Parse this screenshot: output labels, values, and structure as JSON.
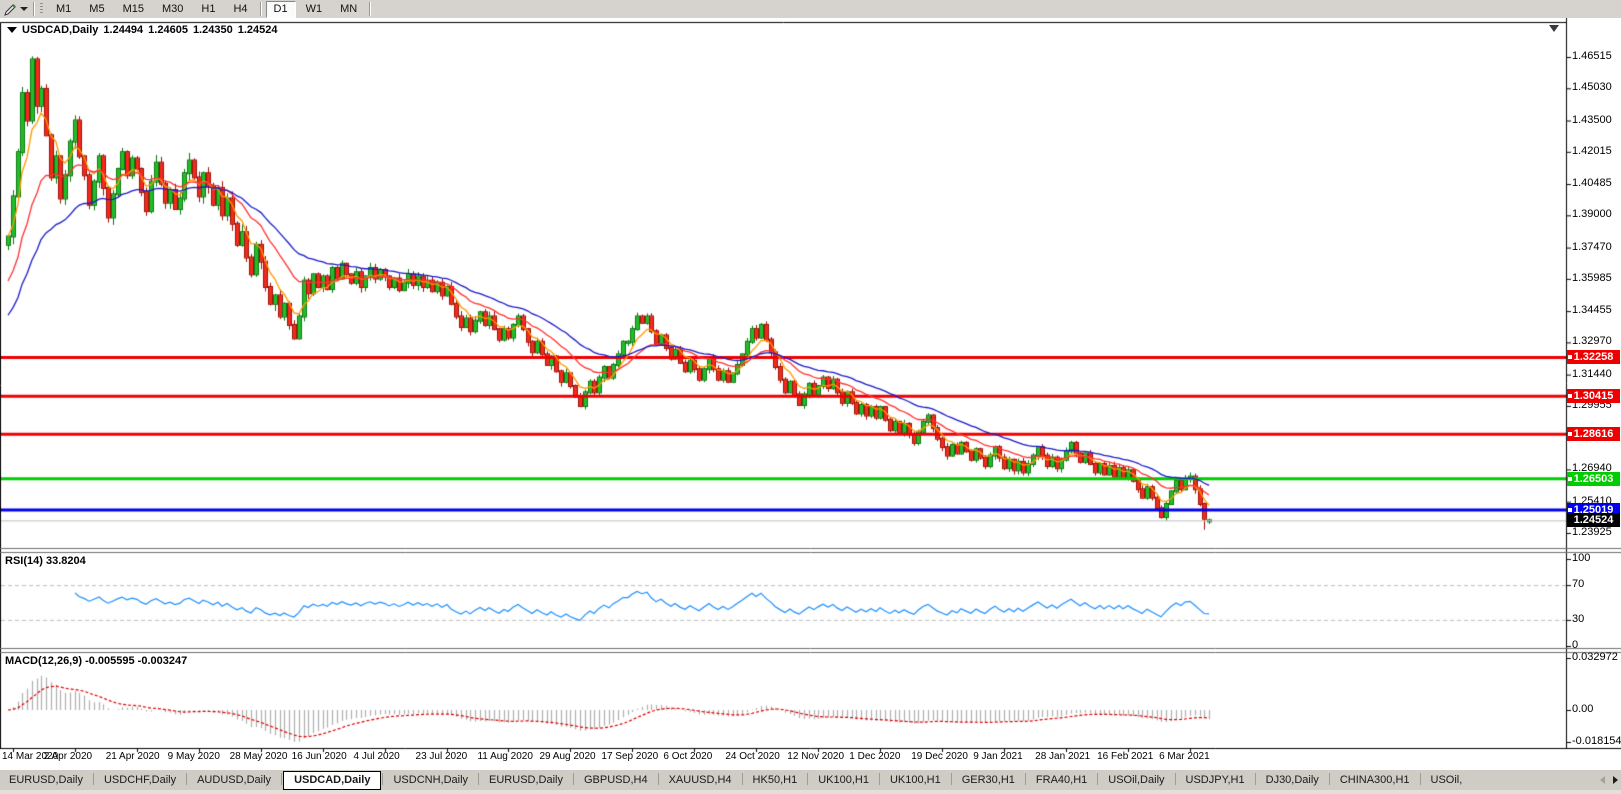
{
  "toolbar": {
    "timeframes": [
      "M1",
      "M5",
      "M15",
      "M30",
      "H1",
      "H4",
      "D1",
      "W1",
      "MN"
    ],
    "selected_timeframe": "D1"
  },
  "chart": {
    "title": {
      "symbol": "USDCAD,Daily",
      "open": "1.24494",
      "high": "1.24605",
      "low": "1.24350",
      "close": "1.24524"
    },
    "price_axis_ticks": [
      "1.46515",
      "1.45030",
      "1.43500",
      "1.42015",
      "1.40485",
      "1.39000",
      "1.37470",
      "1.35985",
      "1.34455",
      "1.32970",
      "1.31440",
      "1.29955",
      "1.28425",
      "1.26940",
      "1.25410",
      "1.23925"
    ],
    "hlines": [
      {
        "label": "1.32258",
        "value": 1.32258,
        "color": "#ee0000"
      },
      {
        "label": "1.30415",
        "value": 1.30415,
        "color": "#ee0000"
      },
      {
        "label": "1.28616",
        "value": 1.28616,
        "color": "#ee0000"
      },
      {
        "label": "1.26503",
        "value": 1.26503,
        "color": "#00cc00"
      },
      {
        "label": "1.25019",
        "value": 1.25019,
        "color": "#0000ee"
      }
    ],
    "current_price": {
      "label": "1.24524",
      "value": 1.24524,
      "box_color": "#000000",
      "line_color": "#c0c0c0"
    }
  },
  "rsi_panel": {
    "label": "RSI(14) 33.8204",
    "axis_ticks": [
      "100",
      "70",
      "30",
      "0"
    ]
  },
  "macd_panel": {
    "label": "MACD(12,26,9) -0.005595 -0.003247",
    "axis_ticks": [
      "0.032972",
      "0.00",
      "-0.018154"
    ]
  },
  "date_axis": [
    "14 Mar 2020",
    "2 Apr 2020",
    "21 Apr 2020",
    "9 May 2020",
    "28 May 2020",
    "16 Jun 2020",
    "4 Jul 2020",
    "23 Jul 2020",
    "11 Aug 2020",
    "29 Aug 2020",
    "17 Sep 2020",
    "6 Oct 2020",
    "24 Oct 2020",
    "12 Nov 2020",
    "1 Dec 2020",
    "19 Dec 2020",
    "9 Jan 2021",
    "28 Jan 2021",
    "16 Feb 2021",
    "6 Mar 2021"
  ],
  "tabs": {
    "items": [
      "EURUSD,Daily",
      "USDCHF,Daily",
      "AUDUSD,Daily",
      "USDCAD,Daily",
      "USDCNH,Daily",
      "EURUSD,Daily",
      "GBPUSD,H4",
      "XAUUSD,H4",
      "HK50,H1",
      "UK100,H1",
      "UK100,H1",
      "GER30,H1",
      "FRA40,H1",
      "USOil,Daily",
      "USDJPY,H1",
      "DJ30,Daily",
      "CHINA300,H1",
      "USOil,"
    ],
    "active_index": 3
  },
  "colors": {
    "up_body": "#24bd2a",
    "up_border": "#0c7a12",
    "down_body": "#f02c1e",
    "down_border": "#a01206",
    "ma_fast": "#ff9900",
    "ma_medium": "#ff3232",
    "ma_slow": "#1c1cc8",
    "rsi_line": "#1e90ff",
    "rsi_level": "#bdbdbd",
    "macd_hist": "#b0b0b0",
    "macd_signal": "#e00000",
    "axis_line": "#000000",
    "pane_sep": "#6e6e6e"
  },
  "chart_data": {
    "type": "candlestick",
    "symbol": "USDCAD",
    "timeframe": "Daily",
    "title": "USDCAD,Daily",
    "ylim": [
      1.2312,
      1.467
    ],
    "x_label_candle_step": 13,
    "last_candle": {
      "open": 1.24494,
      "high": 1.24605,
      "low": 1.2435,
      "close": 1.24524
    },
    "closes": [
      1.38,
      1.399,
      1.42,
      1.448,
      1.435,
      1.464,
      1.442,
      1.45,
      1.428,
      1.408,
      1.418,
      1.398,
      1.409,
      1.425,
      1.435,
      1.418,
      1.409,
      1.395,
      1.406,
      1.418,
      1.403,
      1.389,
      1.4,
      1.412,
      1.42,
      1.409,
      1.417,
      1.412,
      1.401,
      1.392,
      1.406,
      1.415,
      1.405,
      1.396,
      1.402,
      1.393,
      1.398,
      1.41,
      1.416,
      1.408,
      1.399,
      1.41,
      1.404,
      1.395,
      1.403,
      1.39,
      1.398,
      1.386,
      1.376,
      1.382,
      1.37,
      1.362,
      1.376,
      1.368,
      1.356,
      1.348,
      1.352,
      1.342,
      1.348,
      1.338,
      1.3316,
      1.342,
      1.359,
      1.353,
      1.362,
      1.356,
      1.361,
      1.355,
      1.365,
      1.36,
      1.367,
      1.362,
      1.358,
      1.363,
      1.356,
      1.361,
      1.365,
      1.36,
      1.364,
      1.361,
      1.356,
      1.36,
      1.3545,
      1.358,
      1.362,
      1.357,
      1.361,
      1.356,
      1.359,
      1.354,
      1.358,
      1.352,
      1.356,
      1.348,
      1.342,
      1.337,
      1.341,
      1.335,
      1.34,
      1.344,
      1.338,
      1.342,
      1.336,
      1.331,
      1.336,
      1.332,
      1.338,
      1.342,
      1.336,
      1.33,
      1.325,
      1.33,
      1.324,
      1.319,
      1.323,
      1.316,
      1.311,
      1.315,
      1.309,
      1.304,
      1.2995,
      1.306,
      1.311,
      1.306,
      1.313,
      1.318,
      1.313,
      1.319,
      1.324,
      1.33,
      1.33,
      1.336,
      1.342,
      1.339,
      1.342,
      1.335,
      1.329,
      1.333,
      1.327,
      1.322,
      1.326,
      1.32,
      1.316,
      1.321,
      1.317,
      1.312,
      1.317,
      1.322,
      1.317,
      1.312,
      1.316,
      1.311,
      1.315,
      1.319,
      1.324,
      1.33,
      1.336,
      1.332,
      1.338,
      1.331,
      1.325,
      1.318,
      1.312,
      1.306,
      1.311,
      1.305,
      1.3,
      1.305,
      1.31,
      1.305,
      1.309,
      1.313,
      1.308,
      1.312,
      1.306,
      1.301,
      1.306,
      1.301,
      1.296,
      1.3,
      1.295,
      1.299,
      1.294,
      1.299,
      1.293,
      1.288,
      1.292,
      1.287,
      1.291,
      1.286,
      1.282,
      1.287,
      1.292,
      1.295,
      1.289,
      1.284,
      1.28,
      1.276,
      1.281,
      1.277,
      1.282,
      1.278,
      1.274,
      1.279,
      1.275,
      1.271,
      1.276,
      1.28,
      1.275,
      1.27,
      1.274,
      1.269,
      1.273,
      1.268,
      1.272,
      1.276,
      1.28,
      1.276,
      1.271,
      1.275,
      1.27,
      1.274,
      1.278,
      1.282,
      1.277,
      1.273,
      1.277,
      1.272,
      1.268,
      1.272,
      1.267,
      1.271,
      1.266,
      1.27,
      1.265,
      1.269,
      1.264,
      1.26,
      1.256,
      1.261,
      1.256,
      1.251,
      1.2468,
      1.253,
      1.259,
      1.264,
      1.26,
      1.265,
      1.266,
      1.26,
      1.253,
      1.246,
      1.24524
    ],
    "wick_overrides": {
      "5": {
        "h": 1.4655
      },
      "60": {
        "l": 1.331
      },
      "120": {
        "l": 1.299
      },
      "251": {
        "l": 1.2408
      }
    },
    "moving_averages": [
      {
        "name": "fast",
        "period": 6,
        "init": 1.38,
        "color": "#ff9900"
      },
      {
        "name": "medium",
        "period": 16,
        "init": 1.356,
        "color": "#ff3232"
      },
      {
        "name": "slow",
        "period": 30,
        "init": 1.34,
        "color": "#1c1cc8"
      }
    ],
    "rsi": {
      "period": 14,
      "current": 33.8204,
      "levels": [
        70,
        30
      ],
      "range": [
        0,
        100
      ]
    },
    "macd": {
      "fast": 12,
      "slow": 26,
      "signal": 9,
      "current_main": -0.005595,
      "current_signal": -0.003247
    },
    "hlines": [
      1.32258,
      1.30415,
      1.28616,
      1.26503,
      1.25019
    ],
    "current_price": 1.24524
  }
}
